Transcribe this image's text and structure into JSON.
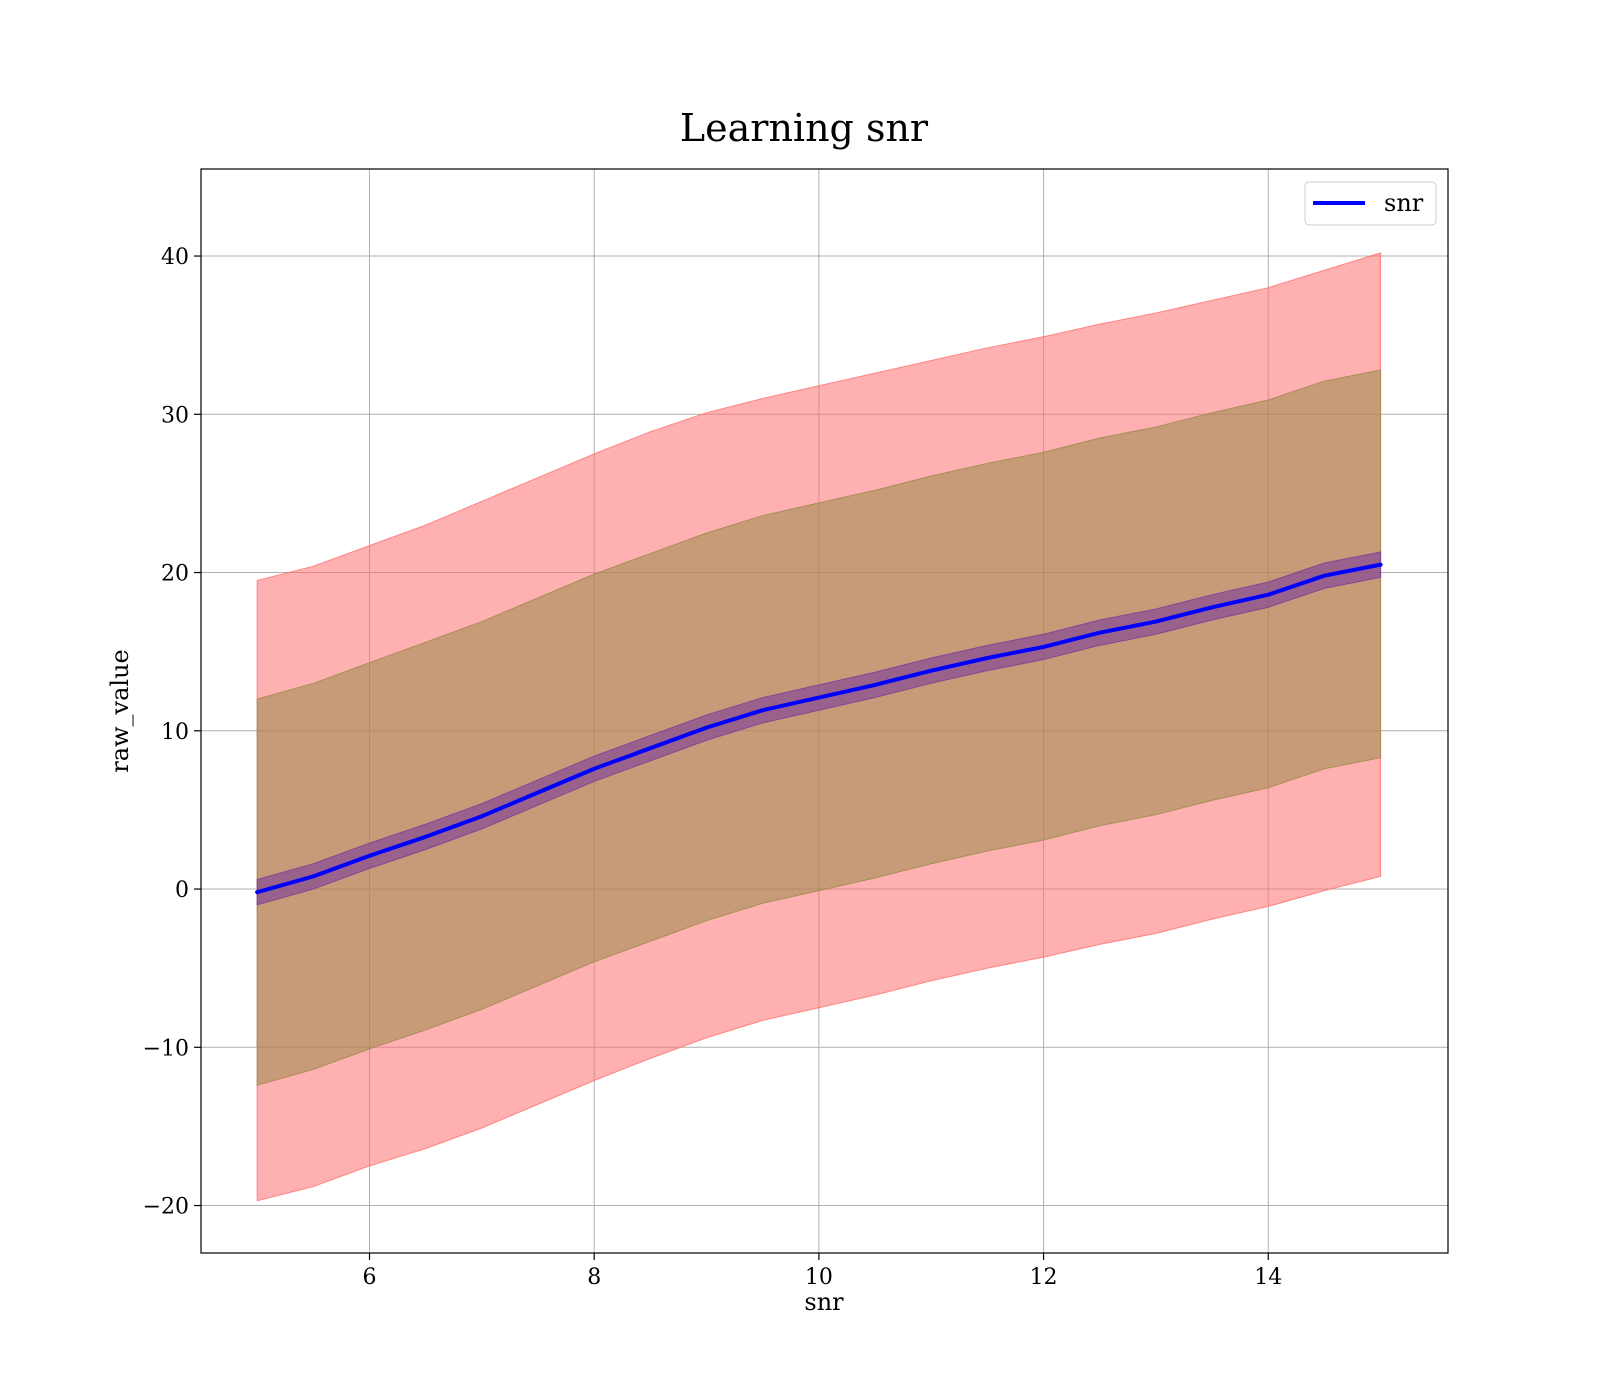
{
  "chart_data": {
    "type": "line",
    "title": "Learning snr",
    "xlabel": "snr",
    "ylabel": "raw_value",
    "xlim": [
      4.5,
      15.6
    ],
    "ylim": [
      -23,
      45.5
    ],
    "xticks": [
      6,
      8,
      10,
      12,
      14
    ],
    "yticks": [
      -20,
      -10,
      0,
      10,
      20,
      30,
      40
    ],
    "ytick_labels": [
      "−20",
      "−10",
      "0",
      "10",
      "20",
      "30",
      "40"
    ],
    "grid": true,
    "legend_position": "top-right",
    "series": [
      {
        "name": "snr",
        "color": "#0000ff",
        "x": [
          5,
          5.5,
          6,
          6.5,
          7,
          7.5,
          8,
          8.5,
          9,
          9.5,
          10,
          10.5,
          11,
          11.5,
          12,
          12.5,
          13,
          13.5,
          14,
          14.5,
          15
        ],
        "values": [
          -0.2,
          0.8,
          2.1,
          3.3,
          4.6,
          6.1,
          7.6,
          8.9,
          10.2,
          11.3,
          12.1,
          12.9,
          13.8,
          14.6,
          15.3,
          16.2,
          16.9,
          17.8,
          18.6,
          19.8,
          20.5
        ]
      }
    ],
    "bands": [
      {
        "name": "outer",
        "color": "#ff6f6f",
        "x": [
          5,
          5.5,
          6,
          6.5,
          7,
          7.5,
          8,
          8.5,
          9,
          9.5,
          10,
          10.5,
          11,
          11.5,
          12,
          12.5,
          13,
          13.5,
          14,
          14.5,
          15
        ],
        "upper": [
          19.5,
          20.4,
          21.7,
          23.0,
          24.5,
          26.0,
          27.5,
          28.9,
          30.1,
          31.0,
          31.8,
          32.6,
          33.4,
          34.2,
          34.9,
          35.7,
          36.4,
          37.2,
          38.0,
          39.1,
          40.2
        ],
        "lower": [
          -19.7,
          -18.8,
          -17.5,
          -16.4,
          -15.1,
          -13.6,
          -12.1,
          -10.7,
          -9.4,
          -8.3,
          -7.5,
          -6.7,
          -5.8,
          -5.0,
          -4.3,
          -3.5,
          -2.8,
          -1.9,
          -1.1,
          -0.1,
          0.8
        ]
      },
      {
        "name": "middle",
        "color": "#9a8a4a",
        "x": [
          5,
          5.5,
          6,
          6.5,
          7,
          7.5,
          8,
          8.5,
          9,
          9.5,
          10,
          10.5,
          11,
          11.5,
          12,
          12.5,
          13,
          13.5,
          14,
          14.5,
          15
        ],
        "upper": [
          12.0,
          13.0,
          14.3,
          15.6,
          16.9,
          18.4,
          19.9,
          21.2,
          22.5,
          23.6,
          24.4,
          25.2,
          26.1,
          26.9,
          27.6,
          28.5,
          29.2,
          30.1,
          30.9,
          32.1,
          32.8
        ],
        "lower": [
          -12.4,
          -11.4,
          -10.1,
          -8.9,
          -7.6,
          -6.1,
          -4.6,
          -3.3,
          -2.0,
          -0.9,
          -0.1,
          0.7,
          1.6,
          2.4,
          3.1,
          4.0,
          4.7,
          5.6,
          6.4,
          7.6,
          8.3
        ]
      },
      {
        "name": "inner",
        "color": "#7a3c9a",
        "x": [
          5,
          5.5,
          6,
          6.5,
          7,
          7.5,
          8,
          8.5,
          9,
          9.5,
          10,
          10.5,
          11,
          11.5,
          12,
          12.5,
          13,
          13.5,
          14,
          14.5,
          15
        ],
        "upper": [
          0.6,
          1.6,
          2.9,
          4.1,
          5.4,
          6.9,
          8.4,
          9.7,
          11.0,
          12.1,
          12.9,
          13.7,
          14.6,
          15.4,
          16.1,
          17.0,
          17.7,
          18.6,
          19.4,
          20.6,
          21.3
        ],
        "lower": [
          -1.0,
          0.0,
          1.3,
          2.5,
          3.8,
          5.3,
          6.8,
          8.1,
          9.4,
          10.5,
          11.3,
          12.1,
          13.0,
          13.8,
          14.5,
          15.4,
          16.1,
          17.0,
          17.8,
          19.0,
          19.7
        ]
      }
    ]
  }
}
